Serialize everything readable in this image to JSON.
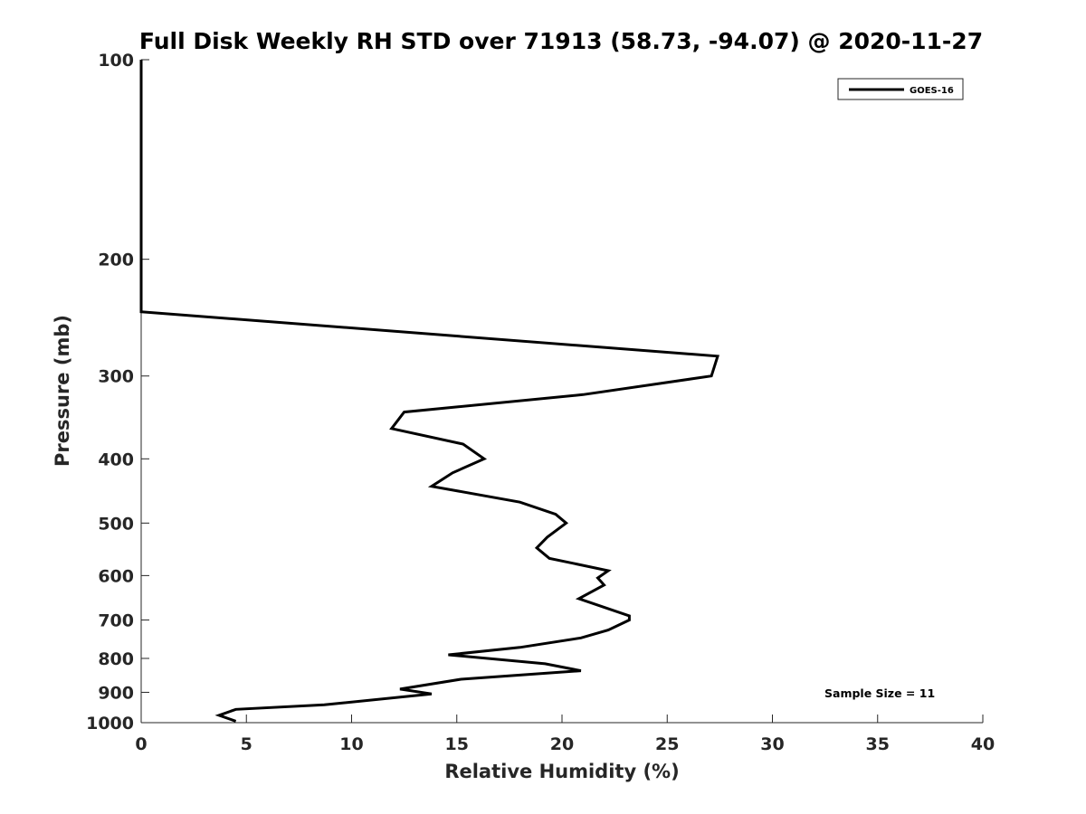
{
  "chart_data": {
    "type": "line",
    "title": "Full Disk Weekly RH STD over 71913 (58.73, -94.07) @ 2020-11-27",
    "xlabel": "Relative Humidity (%)",
    "ylabel": "Pressure (mb)",
    "xlim": [
      0,
      40
    ],
    "ylim": [
      100,
      1000
    ],
    "y_scale": "log",
    "y_reversed": true,
    "x_ticks": [
      0,
      5,
      10,
      15,
      20,
      25,
      30,
      35,
      40
    ],
    "y_ticks": [
      100,
      200,
      300,
      400,
      500,
      600,
      700,
      800,
      900,
      1000
    ],
    "grid": false,
    "legend_position": "top-right",
    "series": [
      {
        "name": "GOES-16",
        "color": "#000000",
        "points": [
          [
            0,
            100
          ],
          [
            0,
            150
          ],
          [
            0,
            200
          ],
          [
            0,
            240
          ],
          [
            27.4,
            280
          ],
          [
            27.1,
            300
          ],
          [
            21.0,
            320
          ],
          [
            12.5,
            340
          ],
          [
            11.9,
            360
          ],
          [
            15.3,
            380
          ],
          [
            16.3,
            400
          ],
          [
            14.8,
            420
          ],
          [
            13.8,
            440
          ],
          [
            18.0,
            465
          ],
          [
            19.7,
            485
          ],
          [
            20.2,
            500
          ],
          [
            19.3,
            525
          ],
          [
            18.8,
            545
          ],
          [
            19.4,
            565
          ],
          [
            22.2,
            590
          ],
          [
            21.7,
            605
          ],
          [
            22.0,
            620
          ],
          [
            20.8,
            650
          ],
          [
            23.2,
            690
          ],
          [
            23.2,
            700
          ],
          [
            22.2,
            725
          ],
          [
            20.9,
            745
          ],
          [
            18.0,
            770
          ],
          [
            14.6,
            790
          ],
          [
            19.2,
            815
          ],
          [
            20.9,
            835
          ],
          [
            15.2,
            860
          ],
          [
            12.3,
            890
          ],
          [
            13.8,
            905
          ],
          [
            8.7,
            940
          ],
          [
            4.5,
            955
          ],
          [
            3.7,
            975
          ],
          [
            4.5,
            995
          ]
        ]
      }
    ],
    "annotations": [
      {
        "text": "Sample Size = 11",
        "position": "bottom-right"
      }
    ]
  }
}
